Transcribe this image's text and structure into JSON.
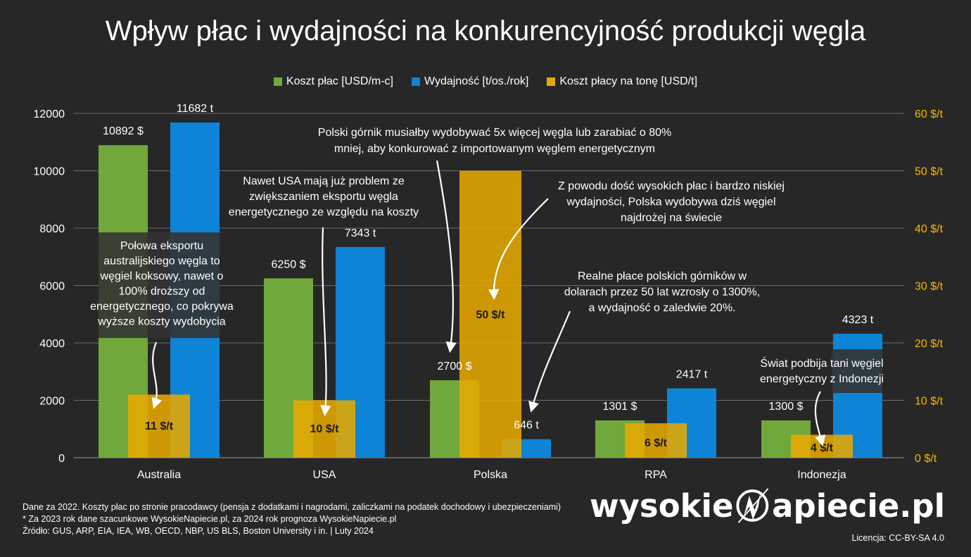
{
  "title": "Wpływ płac i wydajności na konkurencyjność produkcji węgla",
  "legend": [
    {
      "label": "Koszt płac [USD/m-c]",
      "color": "#70a83b"
    },
    {
      "label": "Wydajność [t/os./rok]",
      "color": "#0d84d6"
    },
    {
      "label": "Koszt płacy na tonę [USD/t]",
      "color": "#e6a800"
    }
  ],
  "chart_data": {
    "type": "bar",
    "categories": [
      "Australia",
      "USA",
      "Polska",
      "RPA",
      "Indonezja"
    ],
    "series": [
      {
        "name": "Koszt płac [USD/m-c]",
        "axis": "left",
        "values": [
          10892,
          6250,
          2700,
          1301,
          1300
        ],
        "labels": [
          "10892 $",
          "6250 $",
          "2700 $",
          "1301 $",
          "1300 $"
        ],
        "color": "#70a83b"
      },
      {
        "name": "Wydajność [t/os./rok]",
        "axis": "left",
        "values": [
          11682,
          7343,
          646,
          2417,
          4323
        ],
        "labels": [
          "11682 t",
          "7343 t",
          "646 t",
          "2417 t",
          "4323 t"
        ],
        "color": "#0d84d6"
      },
      {
        "name": "Koszt płacy na tonę [USD/t]",
        "axis": "right",
        "values": [
          11,
          10,
          50,
          6,
          4
        ],
        "labels": [
          "11 $/t",
          "10 $/t",
          "50 $/t",
          "6 $/t",
          "4 $/t"
        ],
        "color": "#e6a800"
      }
    ],
    "y_left": {
      "min": 0,
      "max": 12000,
      "ticks": [
        "0",
        "2000",
        "4000",
        "6000",
        "8000",
        "10000",
        "12000"
      ]
    },
    "y_right": {
      "min": 0,
      "max": 60,
      "ticks": [
        "0 $/t",
        "10 $/t",
        "20 $/t",
        "30 $/t",
        "40 $/t",
        "50 $/t",
        "60 $/t"
      ],
      "color": "#f2b800"
    },
    "grid": true,
    "legend_position": "top-center",
    "annotations": [
      {
        "id": "australia",
        "lines": [
          "Połowa eksportu",
          "australijskiego węgla to",
          "węgiel koksowy, nawet o",
          "100% droższy od",
          "energetycznego, co pokrywa",
          "wyższe koszty wydobycia"
        ]
      },
      {
        "id": "usa",
        "lines": [
          "Nawet USA mają już problem ze",
          "zwiększaniem eksportu węgla",
          "energetycznego ze względu na koszty"
        ]
      },
      {
        "id": "polska-top",
        "lines": [
          "Polski górnik musiałby wydobywać 5x więcej węgla lub zarabiać o 80%",
          "mniej, aby konkurować z importowanym węglem energetycznym"
        ]
      },
      {
        "id": "polska-price",
        "lines": [
          "Z powodu dość wysokich płac i bardzo niskiej",
          "wydajności, Polska wydobywa dziś węgiel",
          "najdrożej na świecie"
        ]
      },
      {
        "id": "polska-wages",
        "lines": [
          "Realne płace polskich górników w",
          "dolarach przez 50 lat wzrosły o 1300%,",
          "a wydajność o zaledwie 20%."
        ]
      },
      {
        "id": "indonezja",
        "lines": [
          "Świat podbija tani węgiel",
          "energetyczny z Indonezji"
        ]
      }
    ]
  },
  "footer": {
    "line1": "Dane za 2022. Koszty płac po stronie pracodawcy (pensja z dodatkami i nagrodami, zaliczkami na podatek dochodowy i ubezpieczeniami)",
    "line2": "* Za 2023 rok dane szacunkowe WysokieNapiecie.pl, za 2024 rok prognoza WysokieNapiecie.pl",
    "line3": "Źródło: GUS, ARP, EIA, IEA, WB, OECD, NBP, US BLS, Boston University i in.  |  Luty 2024"
  },
  "logo": {
    "part1": "wysokie",
    "part2": "apiecie.pl"
  },
  "license": "Licencja: CC-BY-SA 4.0"
}
